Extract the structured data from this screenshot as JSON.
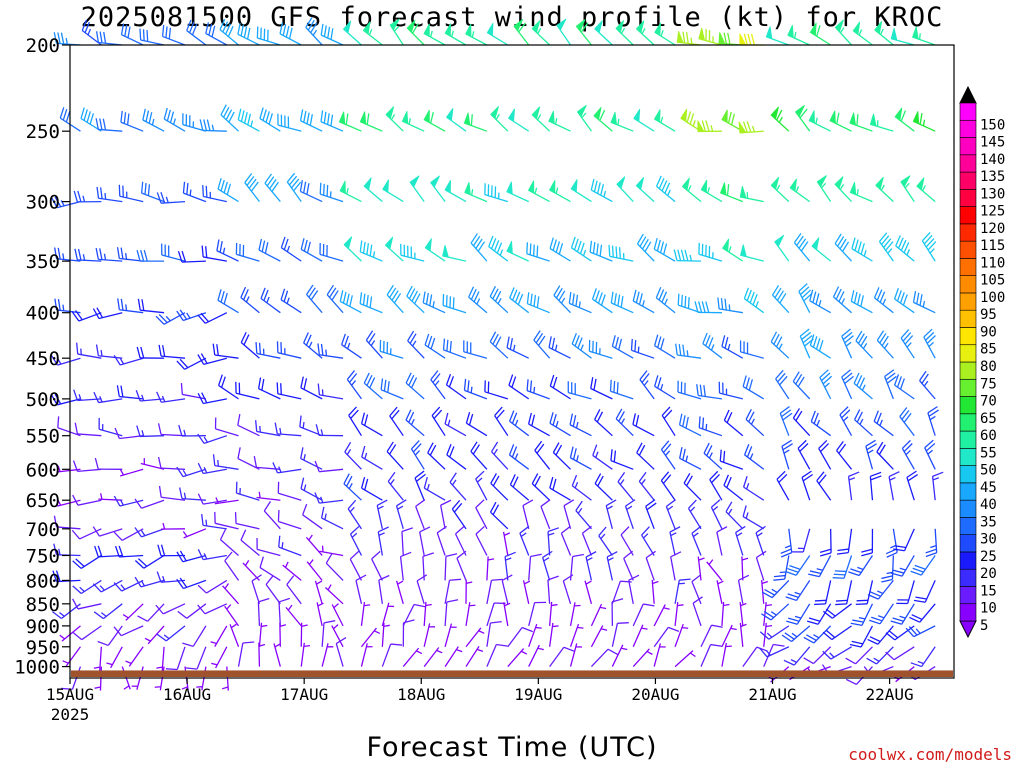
{
  "chart_data": {
    "type": "wind-profile",
    "title": "2025081500 GFS forecast wind profile (kt) for KROC",
    "xlabel": "Forecast Time (UTC)",
    "ylabel": "",
    "credit": "coolwx.com/models",
    "x_range_days": [
      0,
      7.55
    ],
    "x_ticks": [
      {
        "day": 0,
        "label": "15AUG",
        "sublabel": "2025"
      },
      {
        "day": 1,
        "label": "16AUG"
      },
      {
        "day": 2,
        "label": "17AUG"
      },
      {
        "day": 3,
        "label": "18AUG"
      },
      {
        "day": 4,
        "label": "19AUG"
      },
      {
        "day": 5,
        "label": "20AUG"
      },
      {
        "day": 6,
        "label": "21AUG"
      },
      {
        "day": 7,
        "label": "22AUG"
      }
    ],
    "y_scale": "log-pressure",
    "y_range_hpa": [
      1030,
      200
    ],
    "pressure_levels": [
      200,
      250,
      300,
      350,
      400,
      450,
      500,
      550,
      600,
      650,
      700,
      750,
      800,
      850,
      900,
      950,
      1000
    ],
    "colorbar": {
      "ticks": [
        5,
        10,
        15,
        20,
        25,
        30,
        35,
        40,
        45,
        50,
        55,
        60,
        65,
        70,
        75,
        80,
        85,
        90,
        95,
        100,
        105,
        110,
        115,
        120,
        125,
        130,
        135,
        140,
        145,
        150
      ],
      "colors": [
        "#8800ff",
        "#6a1cff",
        "#3b2bff",
        "#1a1aff",
        "#1f4bff",
        "#1e6bff",
        "#1a8cff",
        "#19a8ff",
        "#17c8f0",
        "#20e8c8",
        "#20f0a0",
        "#22f070",
        "#22e835",
        "#66f030",
        "#aaf020",
        "#e8f010",
        "#ffe600",
        "#ffc000",
        "#ffa000",
        "#ff8c00",
        "#ff7000",
        "#ff5000",
        "#ff2800",
        "#ff0000",
        "#ff0040",
        "#ff0066",
        "#ff0099",
        "#ff00c0",
        "#ff00e0",
        "#ff00ff"
      ],
      "extend": "both"
    },
    "surface_pressure_hpa": 1010,
    "barb_time_step_days": 0.25,
    "wind_columns": [
      {
        "t0": 0.0,
        "t1": 1.35,
        "levels": [
          {
            "p": 200,
            "dir": 290,
            "spd": 30
          },
          {
            "p": 250,
            "dir": 285,
            "spd": 35
          },
          {
            "p": 300,
            "dir": 275,
            "spd": 30
          },
          {
            "p": 350,
            "dir": 265,
            "spd": 25
          },
          {
            "p": 400,
            "dir": 260,
            "spd": 22
          },
          {
            "p": 450,
            "dir": 260,
            "spd": 18
          },
          {
            "p": 500,
            "dir": 265,
            "spd": 15
          },
          {
            "p": 550,
            "dir": 270,
            "spd": 12
          },
          {
            "p": 600,
            "dir": 270,
            "spd": 10
          },
          {
            "p": 650,
            "dir": 265,
            "spd": 10
          },
          {
            "p": 700,
            "dir": 260,
            "spd": 12
          },
          {
            "p": 750,
            "dir": 255,
            "spd": 18
          },
          {
            "p": 800,
            "dir": 250,
            "spd": 15
          },
          {
            "p": 850,
            "dir": 240,
            "spd": 12
          },
          {
            "p": 900,
            "dir": 230,
            "spd": 10
          },
          {
            "p": 950,
            "dir": 200,
            "spd": 7
          },
          {
            "p": 1000,
            "dir": 180,
            "spd": 5
          }
        ]
      },
      {
        "t0": 1.35,
        "t1": 2.4,
        "levels": [
          {
            "p": 200,
            "dir": 300,
            "spd": 42
          },
          {
            "p": 250,
            "dir": 300,
            "spd": 40
          },
          {
            "p": 300,
            "dir": 305,
            "spd": 35
          },
          {
            "p": 350,
            "dir": 305,
            "spd": 30
          },
          {
            "p": 400,
            "dir": 300,
            "spd": 28
          },
          {
            "p": 450,
            "dir": 295,
            "spd": 25
          },
          {
            "p": 500,
            "dir": 290,
            "spd": 18
          },
          {
            "p": 550,
            "dir": 285,
            "spd": 15
          },
          {
            "p": 600,
            "dir": 280,
            "spd": 12
          },
          {
            "p": 650,
            "dir": 280,
            "spd": 10
          },
          {
            "p": 700,
            "dir": 300,
            "spd": 10
          },
          {
            "p": 750,
            "dir": 300,
            "spd": 8
          },
          {
            "p": 800,
            "dir": 320,
            "spd": 7
          },
          {
            "p": 850,
            "dir": 330,
            "spd": 7
          },
          {
            "p": 900,
            "dir": 340,
            "spd": 6
          },
          {
            "p": 950,
            "dir": 350,
            "spd": 5
          },
          {
            "p": 1000,
            "dir": 0,
            "spd": 5
          }
        ]
      },
      {
        "t0": 2.4,
        "t1": 5.3,
        "levels": [
          {
            "p": 200,
            "dir": 310,
            "spd": 55
          },
          {
            "p": 250,
            "dir": 305,
            "spd": 55
          },
          {
            "p": 300,
            "dir": 305,
            "spd": 50
          },
          {
            "p": 350,
            "dir": 300,
            "spd": 45
          },
          {
            "p": 400,
            "dir": 300,
            "spd": 38
          },
          {
            "p": 450,
            "dir": 300,
            "spd": 30
          },
          {
            "p": 500,
            "dir": 305,
            "spd": 25
          },
          {
            "p": 550,
            "dir": 310,
            "spd": 22
          },
          {
            "p": 600,
            "dir": 310,
            "spd": 20
          },
          {
            "p": 650,
            "dir": 320,
            "spd": 18
          },
          {
            "p": 700,
            "dir": 330,
            "spd": 15
          },
          {
            "p": 750,
            "dir": 340,
            "spd": 12
          },
          {
            "p": 800,
            "dir": 350,
            "spd": 10
          },
          {
            "p": 850,
            "dir": 0,
            "spd": 8
          },
          {
            "p": 900,
            "dir": 10,
            "spd": 7
          },
          {
            "p": 950,
            "dir": 20,
            "spd": 6
          },
          {
            "p": 1000,
            "dir": 30,
            "spd": 5
          }
        ]
      },
      {
        "t0": 5.3,
        "t1": 6.05,
        "levels": [
          {
            "p": 200,
            "dir": 285,
            "spd": 75
          },
          {
            "p": 250,
            "dir": 285,
            "spd": 70
          },
          {
            "p": 300,
            "dir": 290,
            "spd": 55
          },
          {
            "p": 350,
            "dir": 290,
            "spd": 50
          },
          {
            "p": 400,
            "dir": 290,
            "spd": 40
          },
          {
            "p": 450,
            "dir": 290,
            "spd": 32
          },
          {
            "p": 500,
            "dir": 295,
            "spd": 30
          },
          {
            "p": 550,
            "dir": 300,
            "spd": 25
          },
          {
            "p": 600,
            "dir": 300,
            "spd": 22
          },
          {
            "p": 650,
            "dir": 310,
            "spd": 18
          },
          {
            "p": 700,
            "dir": 320,
            "spd": 12
          },
          {
            "p": 750,
            "dir": 330,
            "spd": 10
          },
          {
            "p": 800,
            "dir": 340,
            "spd": 8
          },
          {
            "p": 850,
            "dir": 350,
            "spd": 7
          },
          {
            "p": 900,
            "dir": 0,
            "spd": 6
          },
          {
            "p": 950,
            "dir": 10,
            "spd": 5
          },
          {
            "p": 1000,
            "dir": 20,
            "spd": 5
          }
        ]
      },
      {
        "t0": 6.05,
        "t1": 7.55,
        "levels": [
          {
            "p": 200,
            "dir": 300,
            "spd": 55
          },
          {
            "p": 250,
            "dir": 305,
            "spd": 60
          },
          {
            "p": 300,
            "dir": 310,
            "spd": 55
          },
          {
            "p": 350,
            "dir": 315,
            "spd": 45
          },
          {
            "p": 400,
            "dir": 315,
            "spd": 38
          },
          {
            "p": 450,
            "dir": 320,
            "spd": 35
          },
          {
            "p": 500,
            "dir": 320,
            "spd": 30
          },
          {
            "p": 550,
            "dir": 325,
            "spd": 25
          },
          {
            "p": 600,
            "dir": 330,
            "spd": 22
          },
          {
            "p": 650,
            "dir": 335,
            "spd": 18
          },
          {
            "p": 700,
            "dir": 190,
            "spd": 22
          },
          {
            "p": 750,
            "dir": 200,
            "spd": 25
          },
          {
            "p": 800,
            "dir": 210,
            "spd": 25
          },
          {
            "p": 850,
            "dir": 220,
            "spd": 22
          },
          {
            "p": 900,
            "dir": 225,
            "spd": 20
          },
          {
            "p": 950,
            "dir": 230,
            "spd": 15
          },
          {
            "p": 1000,
            "dir": 240,
            "spd": 8
          }
        ]
      }
    ],
    "ground_color": "#a0522d",
    "grid": false
  }
}
